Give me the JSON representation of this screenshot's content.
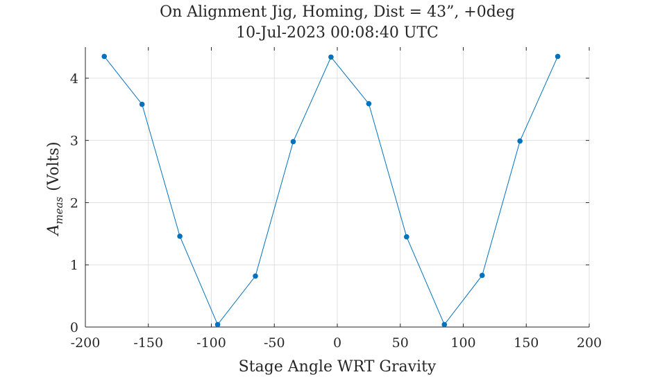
{
  "chart_data": {
    "type": "line",
    "title": "On Alignment Jig, Homing, Dist = 43”, +0deg",
    "subtitle": "10-Jul-2023 00:08:40 UTC",
    "xlabel": "Stage Angle WRT Gravity",
    "ylabel": {
      "symbol": "A",
      "subscript": "meas",
      "units": "(Volts)"
    },
    "xlim": [
      -200,
      200
    ],
    "ylim": [
      0,
      4.5
    ],
    "xticks": [
      "-200",
      "-150",
      "-100",
      "-50",
      "0",
      "50",
      "100",
      "150",
      "200"
    ],
    "yticks": [
      "0",
      "1",
      "2",
      "3",
      "4"
    ],
    "grid": true,
    "series": [
      {
        "color": "#0072BD",
        "x": [
          -185,
          -155,
          -125,
          -95,
          -65,
          -35,
          -5,
          25,
          55,
          85,
          115,
          145,
          175
        ],
        "y": [
          4.35,
          3.58,
          1.46,
          0.04,
          0.82,
          2.98,
          4.34,
          3.59,
          1.45,
          0.04,
          0.83,
          2.99,
          4.35
        ]
      }
    ]
  }
}
